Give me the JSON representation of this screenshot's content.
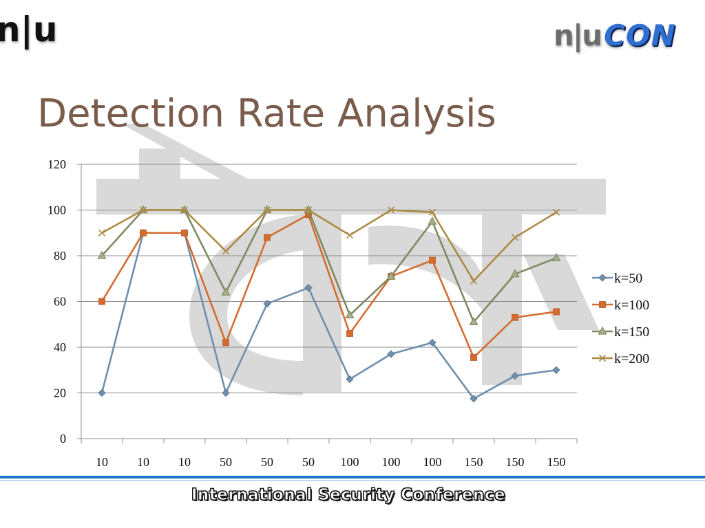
{
  "header": {
    "logo_left": "n|u",
    "logo_right_prefix": "n|u",
    "logo_right_suffix": "CON"
  },
  "slide": {
    "title": "Detection Rate Analysis"
  },
  "footer": {
    "text": "International Security Conference"
  },
  "colors": {
    "title": "#7a5c4c",
    "k50": "#6f8fae",
    "k100": "#d46c30",
    "k150": "#7f8a62",
    "k200": "#ab8a44",
    "watermark": "#d9d9d9",
    "footer_line": "#1e74c8"
  },
  "chart_data": {
    "type": "line",
    "title": "",
    "xlabel": "",
    "ylabel": "",
    "ylim": [
      0,
      120
    ],
    "yticks": [
      0,
      20,
      40,
      60,
      80,
      100,
      120
    ],
    "grid": true,
    "legend_position": "right",
    "categories": [
      "10",
      "10",
      "10",
      "50",
      "50",
      "50",
      "100",
      "100",
      "100",
      "150",
      "150",
      "150"
    ],
    "series": [
      {
        "name": "k=50",
        "marker": "diamond",
        "color": "#6f8fae",
        "values": [
          20,
          90,
          90,
          20,
          59,
          66,
          26,
          37,
          42,
          17.5,
          27.5,
          30
        ]
      },
      {
        "name": "k=100",
        "marker": "square",
        "color": "#d46c30",
        "values": [
          60,
          90,
          90,
          42,
          88,
          98,
          46,
          71,
          78,
          35.5,
          53,
          55.5
        ]
      },
      {
        "name": "k=150",
        "marker": "triangle",
        "color": "#7f8a62",
        "values": [
          80,
          100,
          100,
          64,
          100,
          100,
          54,
          71,
          95,
          51,
          72,
          79
        ]
      },
      {
        "name": "k=200",
        "marker": "x",
        "color": "#ab8a44",
        "values": [
          90,
          100,
          100,
          82,
          100,
          100,
          89,
          100,
          99,
          69,
          88,
          99
        ]
      }
    ]
  }
}
